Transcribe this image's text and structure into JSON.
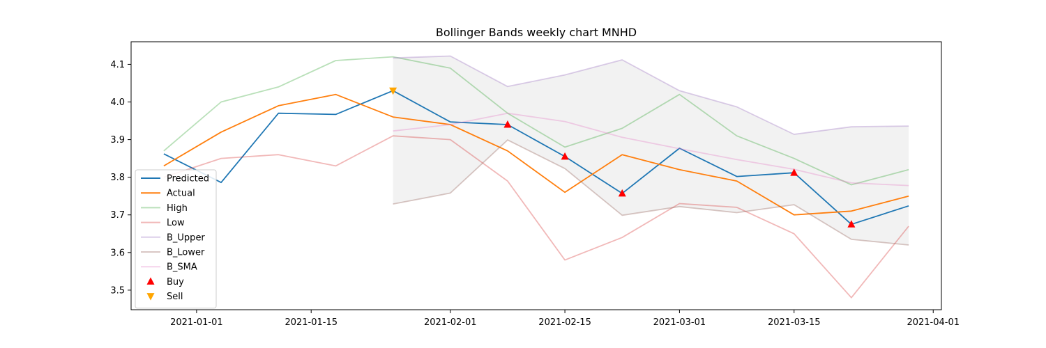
{
  "chart_data": {
    "type": "line",
    "title": "Bollinger Bands weekly chart MNHD",
    "xlabel": "",
    "ylabel": "",
    "x_axis_type": "date",
    "xlim": [
      "2020-12-24",
      "2021-04-02"
    ],
    "ylim": [
      3.448,
      4.16
    ],
    "x_ticks": [
      "2021-01-01",
      "2021-01-15",
      "2021-02-01",
      "2021-02-15",
      "2021-03-01",
      "2021-03-15",
      "2021-04-01"
    ],
    "x_tick_labels": [
      "2021-01-01",
      "2021-01-15",
      "2021-02-01",
      "2021-02-15",
      "2021-03-01",
      "2021-03-15",
      "2021-04-01"
    ],
    "y_ticks": [
      3.5,
      3.6,
      3.7,
      3.8,
      3.9,
      4.0,
      4.1
    ],
    "y_tick_labels": [
      "3.5",
      "3.6",
      "3.7",
      "3.8",
      "3.9",
      "4.0",
      "4.1"
    ],
    "grid": false,
    "legend_position": "lower-left",
    "x": [
      "2020-12-28",
      "2021-01-04",
      "2021-01-11",
      "2021-01-18",
      "2021-01-25",
      "2021-02-01",
      "2021-02-08",
      "2021-02-15",
      "2021-02-22",
      "2021-03-01",
      "2021-03-08",
      "2021-03-15",
      "2021-03-22",
      "2021-03-29"
    ],
    "series": [
      {
        "name": "Predicted",
        "color": "#1f77b4",
        "alpha": 1.0,
        "values": [
          3.862,
          3.786,
          3.97,
          3.967,
          4.03,
          3.947,
          3.94,
          3.855,
          3.757,
          3.877,
          3.802,
          3.812,
          3.675,
          3.724
        ]
      },
      {
        "name": "Actual",
        "color": "#ff7f0e",
        "alpha": 1.0,
        "values": [
          3.83,
          3.92,
          3.99,
          4.02,
          3.96,
          3.94,
          3.87,
          3.76,
          3.86,
          3.82,
          3.79,
          3.7,
          3.71,
          3.75
        ]
      },
      {
        "name": "High",
        "color": "#2ca02c",
        "alpha": 0.33,
        "values": [
          3.87,
          4.0,
          4.04,
          4.11,
          4.12,
          4.09,
          3.97,
          3.88,
          3.93,
          4.02,
          3.91,
          3.85,
          3.78,
          3.82
        ]
      },
      {
        "name": "Low",
        "color": "#d62728",
        "alpha": 0.33,
        "values": [
          3.8,
          3.85,
          3.86,
          3.83,
          3.91,
          3.9,
          3.79,
          3.58,
          3.64,
          3.73,
          3.72,
          3.65,
          3.48,
          3.67
        ]
      },
      {
        "name": "B_Upper",
        "color": "#9467bd",
        "alpha": 0.33,
        "values": [
          null,
          null,
          null,
          null,
          4.117,
          4.122,
          4.041,
          4.072,
          4.112,
          4.03,
          3.987,
          3.914,
          3.934,
          3.936
        ]
      },
      {
        "name": "B_Lower",
        "color": "#8c564b",
        "alpha": 0.33,
        "values": [
          null,
          null,
          null,
          null,
          3.729,
          3.758,
          3.899,
          3.823,
          3.699,
          3.722,
          3.706,
          3.727,
          3.635,
          3.62
        ]
      },
      {
        "name": "B_SMA",
        "color": "#e377c2",
        "alpha": 0.33,
        "values": [
          null,
          null,
          null,
          null,
          3.923,
          3.94,
          3.97,
          3.948,
          3.906,
          3.876,
          3.847,
          3.821,
          3.785,
          3.778
        ]
      }
    ],
    "markers": [
      {
        "name": "Buy",
        "symbol": "triangle-up",
        "color": "#ff0000",
        "points": [
          {
            "x": "2021-02-08",
            "y": 3.94
          },
          {
            "x": "2021-02-15",
            "y": 3.855
          },
          {
            "x": "2021-02-22",
            "y": 3.757
          },
          {
            "x": "2021-03-15",
            "y": 3.812
          },
          {
            "x": "2021-03-22",
            "y": 3.675
          }
        ]
      },
      {
        "name": "Sell",
        "symbol": "triangle-down",
        "color": "#ffa500",
        "points": [
          {
            "x": "2021-01-25",
            "y": 4.03
          }
        ]
      }
    ],
    "band_fill": {
      "between": [
        "B_Upper",
        "B_Lower"
      ],
      "color": "#808080",
      "alpha": 0.1
    }
  }
}
